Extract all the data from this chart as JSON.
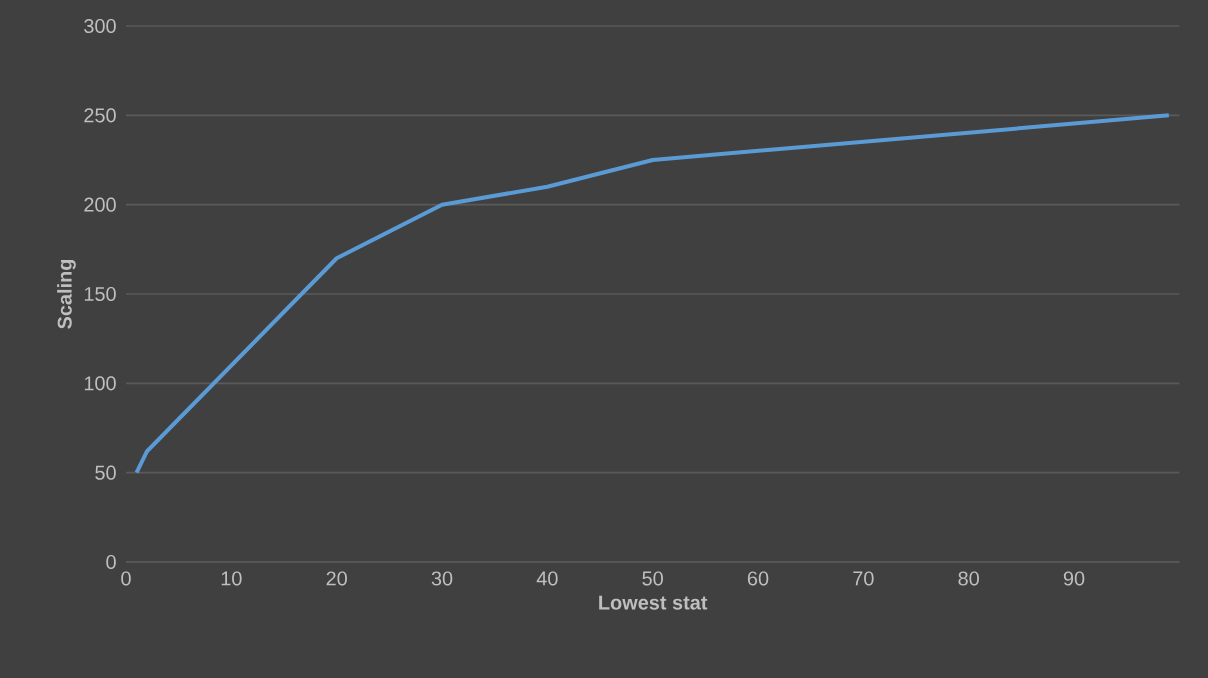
{
  "chart_data": {
    "type": "line",
    "xlabel": "Lowest stat",
    "ylabel": "Scaling",
    "x": [
      1,
      2,
      20,
      30,
      40,
      50,
      99
    ],
    "series": [
      {
        "color": "#5b9bd5",
        "values": [
          50,
          62,
          170,
          200,
          210,
          225,
          250
        ]
      }
    ],
    "xlim": [
      0,
      100
    ],
    "xticks": [
      0,
      10,
      20,
      30,
      40,
      50,
      60,
      70,
      80,
      90
    ],
    "ylim": [
      0,
      300
    ],
    "yticks": [
      0,
      50,
      100,
      150,
      200,
      250,
      300
    ],
    "grid": "y",
    "marker": "none",
    "line_style": "solid"
  }
}
